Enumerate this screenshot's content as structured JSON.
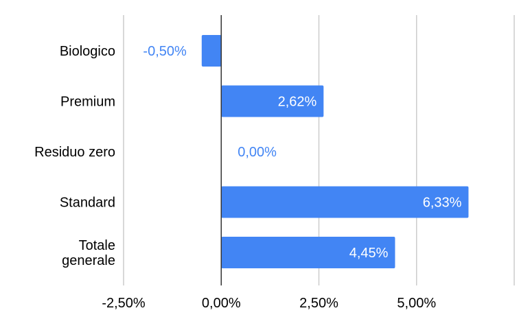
{
  "chart_data": {
    "type": "bar",
    "orientation": "horizontal",
    "categories": [
      [
        "Biologico"
      ],
      [
        "Premium"
      ],
      [
        "Residuo zero"
      ],
      [
        "Standard"
      ],
      [
        "Totale",
        "generale"
      ]
    ],
    "values": [
      -0.5,
      2.62,
      0.0,
      6.33,
      4.45
    ],
    "data_labels": [
      "-0,50%",
      "2,62%",
      "0,00%",
      "6,33%",
      "4,45%"
    ],
    "xlim": [
      -2.5,
      7.5
    ],
    "x_ticks": [
      -2.5,
      0,
      2.5,
      5,
      7.5
    ],
    "x_tick_labels": [
      "-2,50%",
      "0,00%",
      "2,50%",
      "5,00%",
      ""
    ],
    "grid": true,
    "legend": "none",
    "colors": {
      "bar": "#4285f4",
      "label_inside": "#ffffff",
      "label_outside": "#4285f4",
      "grid": "#cccccc",
      "zero_axis": "#333333"
    }
  }
}
